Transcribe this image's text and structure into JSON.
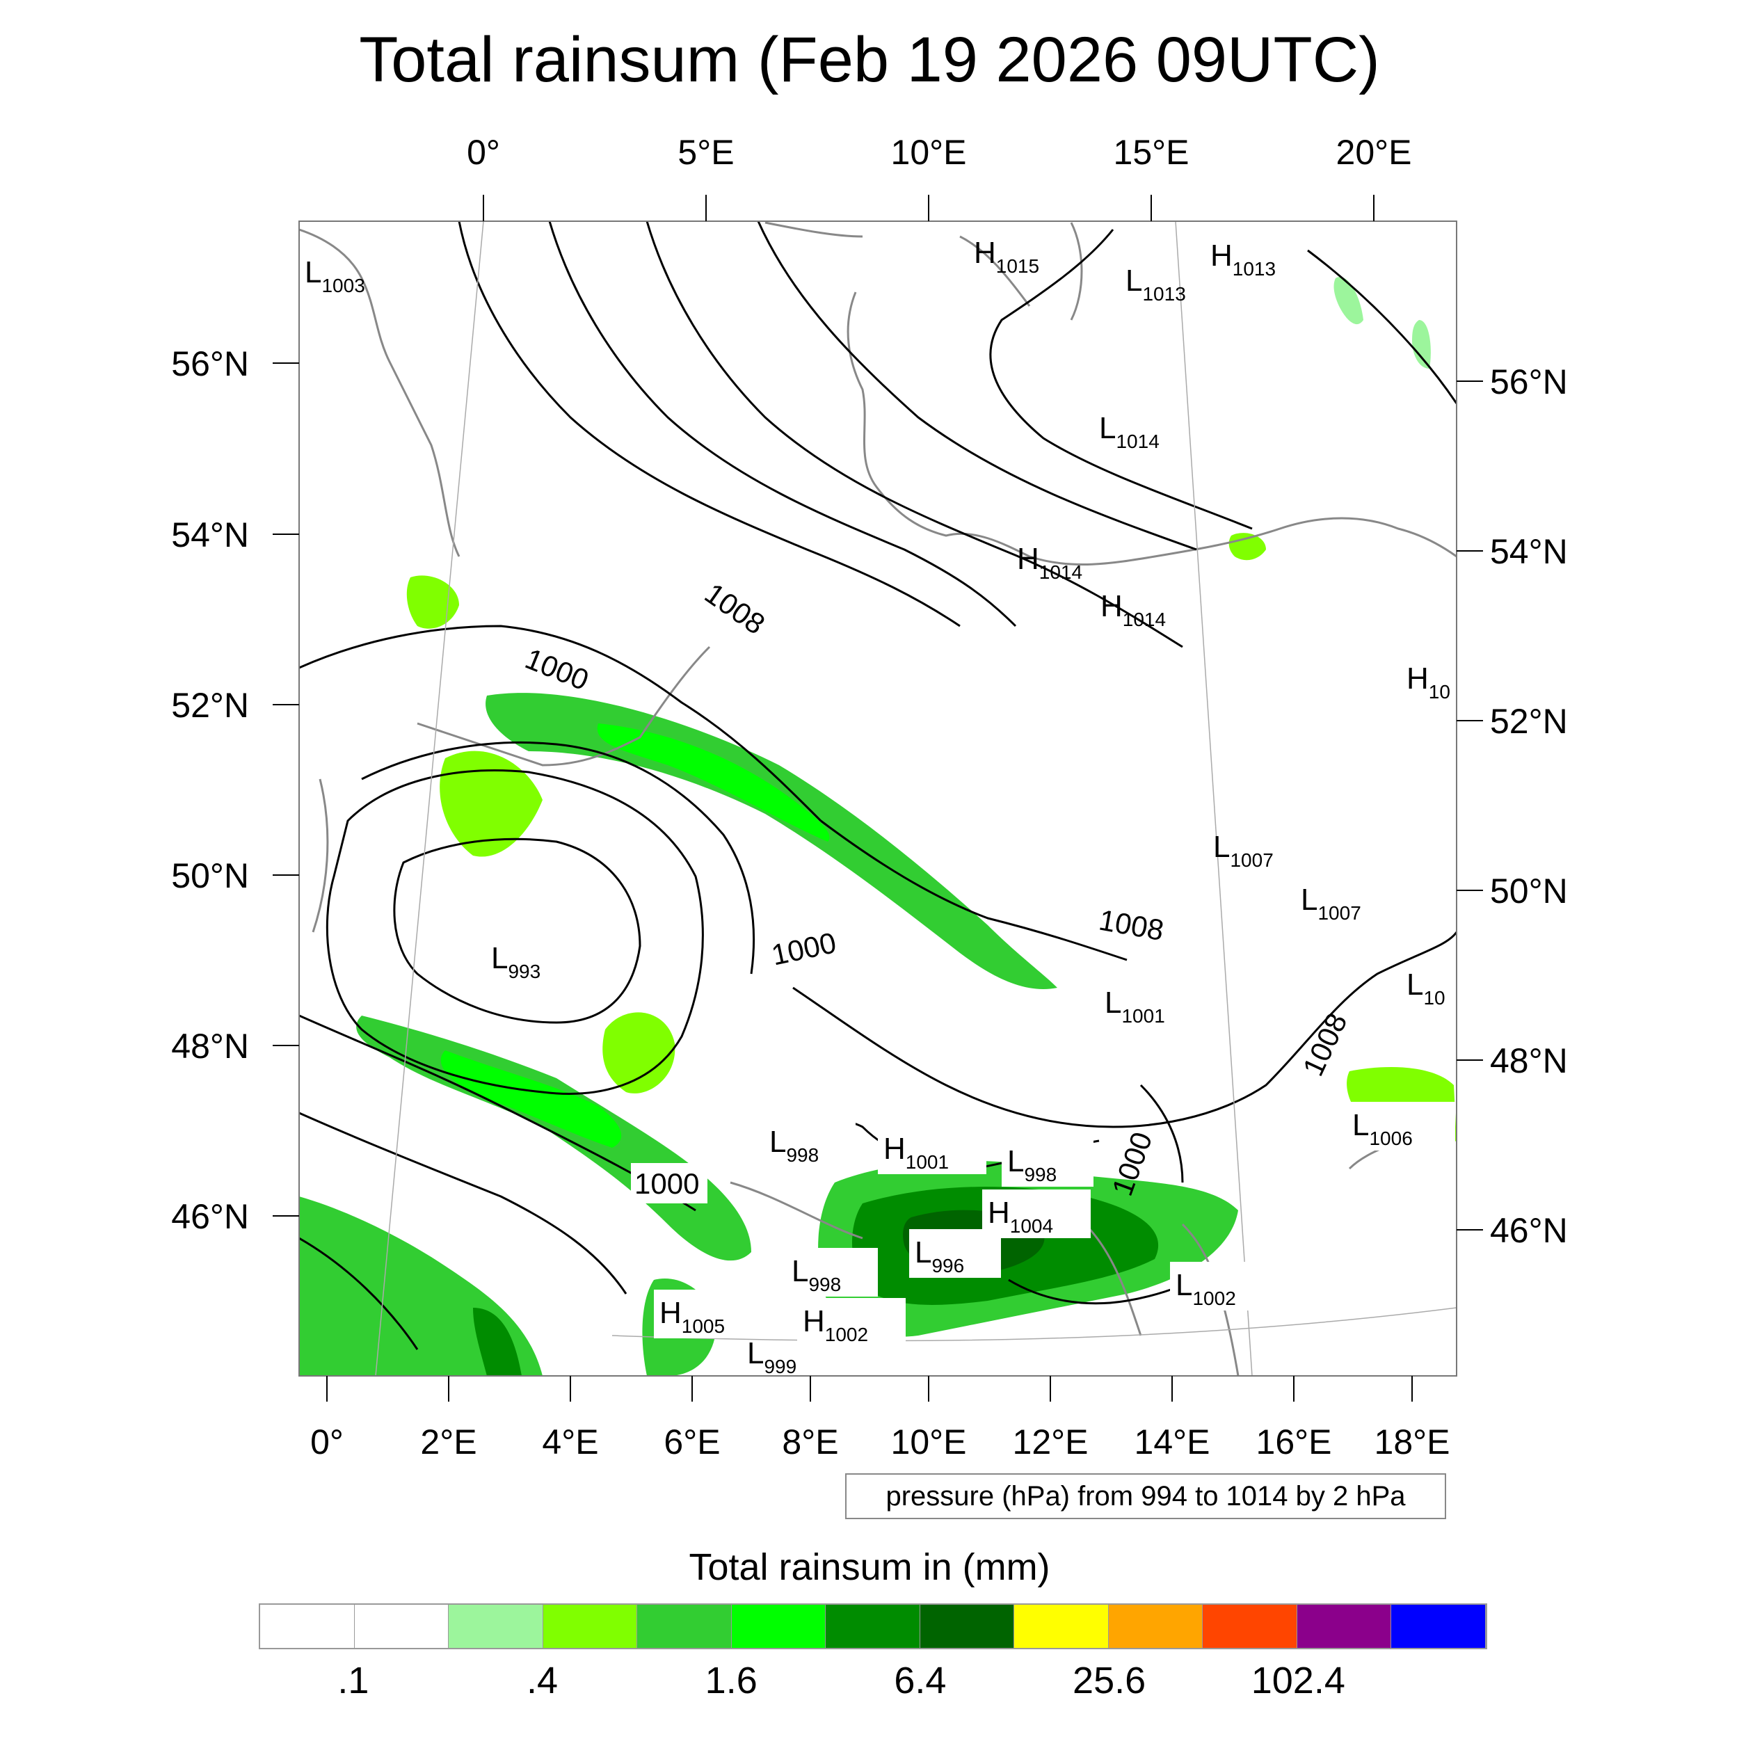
{
  "title": "Total rainsum (Feb 19 2026 09UTC)",
  "top_lon_labels": [
    "0°",
    "5°E",
    "10°E",
    "15°E",
    "20°E"
  ],
  "bottom_lon_labels": [
    "0°",
    "2°E",
    "4°E",
    "6°E",
    "8°E",
    "10°E",
    "12°E",
    "14°E",
    "16°E",
    "18°E"
  ],
  "left_lat_labels": [
    "56°N",
    "54°N",
    "52°N",
    "50°N",
    "48°N",
    "46°N"
  ],
  "right_lat_labels": [
    "56°N",
    "54°N",
    "52°N",
    "50°N",
    "48°N",
    "46°N"
  ],
  "contour_labels": [
    "1008",
    "1000",
    "1000",
    "1008",
    "1008",
    "1000",
    "1000"
  ],
  "pressure_centers": [
    {
      "type": "L",
      "value": "1003"
    },
    {
      "type": "H",
      "value": "1015"
    },
    {
      "type": "L",
      "value": "1013"
    },
    {
      "type": "H",
      "value": "1013"
    },
    {
      "type": "L",
      "value": "1014"
    },
    {
      "type": "H",
      "value": "1014"
    },
    {
      "type": "H",
      "value": "1014"
    },
    {
      "type": "H",
      "value": "10"
    },
    {
      "type": "L",
      "value": "1007"
    },
    {
      "type": "L",
      "value": "1007"
    },
    {
      "type": "L",
      "value": "993"
    },
    {
      "type": "L",
      "value": "1001"
    },
    {
      "type": "L",
      "value": "10"
    },
    {
      "type": "L",
      "value": "998"
    },
    {
      "type": "H",
      "value": "1001"
    },
    {
      "type": "L",
      "value": "998"
    },
    {
      "type": "H",
      "value": "1004"
    },
    {
      "type": "L",
      "value": "996"
    },
    {
      "type": "L",
      "value": "998"
    },
    {
      "type": "L",
      "value": "1002"
    },
    {
      "type": "H",
      "value": "1005"
    },
    {
      "type": "H",
      "value": "1002"
    },
    {
      "type": "L",
      "value": "999"
    },
    {
      "type": "L",
      "value": "1006"
    }
  ],
  "contour_note": "pressure (hPa) from 994 to 1014 by 2 hPa",
  "colorbar": {
    "title": "Total rainsum in (mm)",
    "colors": [
      "#ffffff",
      "#ffffff",
      "#9cf59c",
      "#80ff00",
      "#32cd32",
      "#00ff00",
      "#008c00",
      "#006400",
      "#ffff00",
      "#ffa500",
      "#ff4500",
      "#8b008b",
      "#0000ff"
    ],
    "tick_labels": [
      ".1",
      ".4",
      "1.6",
      "6.4",
      "25.6",
      "102.4"
    ]
  }
}
